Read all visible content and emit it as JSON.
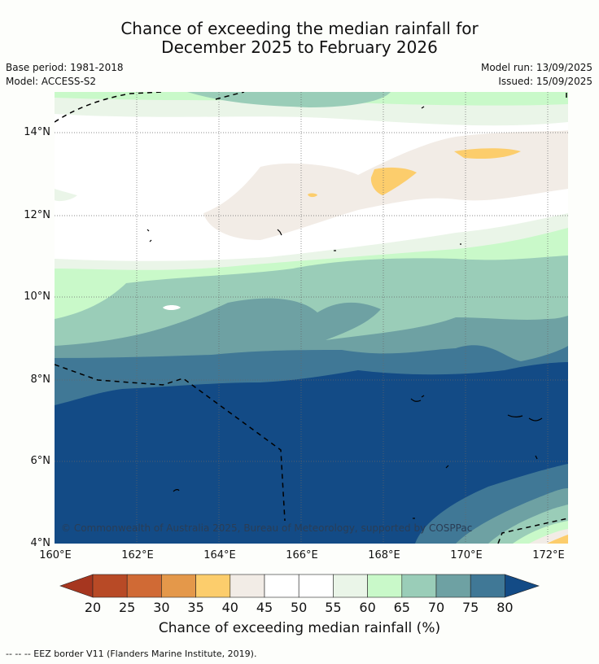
{
  "header": {
    "title_line1": "Chance of exceeding the median rainfall for",
    "title_line2": "December 2025 to February 2026",
    "base_period": "Base period: 1981-2018",
    "model": "Model: ACCESS-S2",
    "model_run": "Model run: 13/09/2025",
    "issued": "Issued: 15/09/2025"
  },
  "map": {
    "lat_labels": [
      "14°N",
      "12°N",
      "10°N",
      "8°N",
      "6°N",
      "4°N"
    ],
    "lon_labels": [
      "160°E",
      "162°E",
      "164°E",
      "166°E",
      "168°E",
      "170°E",
      "172°E"
    ],
    "watermark": "© Commonwealth of Australia 2025, Bureau of Meteorology, supported by COSPPac"
  },
  "colorbar": {
    "ticks": [
      "20",
      "25",
      "30",
      "35",
      "40",
      "45",
      "50",
      "55",
      "60",
      "65",
      "70",
      "75",
      "80"
    ],
    "colors": [
      "#a6361f",
      "#b84a26",
      "#d06a35",
      "#e4984a",
      "#fccd6c",
      "#f2ece6",
      "#ffffff",
      "#ffffff",
      "#eaf5e8",
      "#c9f9c9",
      "#9acdb8",
      "#6ea1a3",
      "#407896",
      "#134b86"
    ],
    "label": "Chance of exceeding median rainfall (%)"
  },
  "footer": {
    "eez_note": "--  --  -- EEZ border V11 (Flanders Marine Institute, 2019)."
  }
}
